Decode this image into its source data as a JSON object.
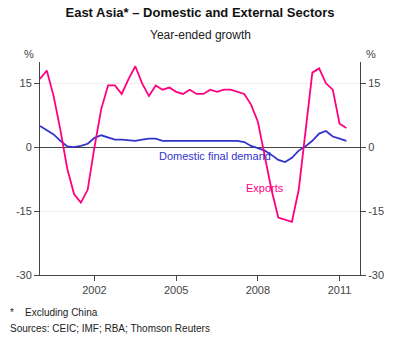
{
  "chart_data": {
    "type": "line",
    "title": "East Asia* – Domestic and External Sectors",
    "subtitle": "Year-ended growth",
    "ylabel": "%",
    "y2label": "%",
    "annotations": [
      "*    Excluding China",
      "Sources: CEIC; IMF; RBA; Thomson Reuters"
    ],
    "x": [
      2000.0,
      2000.25,
      2000.5,
      2000.75,
      2001.0,
      2001.25,
      2001.5,
      2001.75,
      2002.0,
      2002.25,
      2002.5,
      2002.75,
      2003.0,
      2003.25,
      2003.5,
      2003.75,
      2004.0,
      2004.25,
      2004.5,
      2004.75,
      2005.0,
      2005.25,
      2005.5,
      2005.75,
      2006.0,
      2006.25,
      2006.5,
      2006.75,
      2007.0,
      2007.25,
      2007.5,
      2007.75,
      2008.0,
      2008.25,
      2008.5,
      2008.75,
      2009.0,
      2009.25,
      2009.5,
      2009.75,
      2010.0,
      2010.25,
      2010.5,
      2010.75,
      2011.0,
      2011.25
    ],
    "series": [
      {
        "name": "Domestic final demand",
        "color": "#3333cc",
        "values": [
          5.0,
          4.0,
          3.0,
          1.5,
          0.2,
          0.0,
          0.3,
          0.8,
          2.2,
          2.8,
          2.3,
          1.8,
          1.8,
          1.6,
          1.5,
          1.8,
          2.0,
          2.0,
          1.5,
          1.5,
          1.5,
          1.5,
          1.5,
          1.5,
          1.5,
          1.5,
          1.5,
          1.5,
          1.5,
          1.5,
          1.2,
          0.3,
          -0.2,
          -0.8,
          -1.8,
          -3.0,
          -3.5,
          -2.5,
          -0.8,
          0.2,
          1.5,
          3.2,
          3.8,
          2.5,
          2.0,
          1.5
        ]
      },
      {
        "name": "Exports",
        "color": "#ff007f",
        "values": [
          16.0,
          18.0,
          12.0,
          4.0,
          -5.0,
          -11.0,
          -13.0,
          -10.0,
          0.0,
          9.0,
          14.5,
          14.5,
          12.5,
          16.0,
          19.0,
          15.0,
          12.0,
          14.5,
          13.5,
          14.0,
          13.0,
          12.5,
          13.5,
          12.5,
          12.5,
          13.5,
          13.0,
          13.5,
          13.5,
          13.0,
          12.5,
          10.0,
          6.0,
          -2.0,
          -10.0,
          -16.5,
          -17.0,
          -17.5,
          -10.0,
          4.0,
          17.5,
          18.5,
          15.0,
          13.5,
          5.5,
          4.5
        ]
      }
    ],
    "xlim": [
      2000.0,
      2011.75
    ],
    "xticks": [
      2002,
      2005,
      2008,
      2011
    ],
    "ylim": [
      -30,
      20
    ],
    "yticks": [
      -30,
      -15,
      0,
      15
    ],
    "y2lim": [
      -30,
      20
    ],
    "y2ticks": [
      -30,
      -15,
      0,
      15
    ],
    "grid": true
  }
}
